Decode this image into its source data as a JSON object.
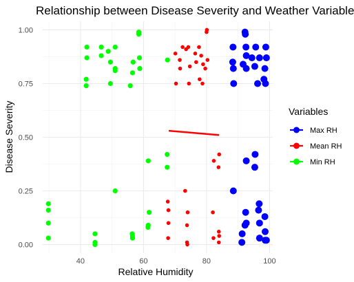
{
  "chart_data": {
    "type": "scatter",
    "title": "Relationship between Disease Severity and Weather Variables",
    "xlabel": "Relative Humidity",
    "ylabel": "Disease Severity",
    "xlim": [
      28,
      101
    ],
    "ylim": [
      -0.04,
      1.04
    ],
    "x_ticks": [
      40,
      60,
      80,
      100
    ],
    "y_ticks": [
      0.0,
      0.25,
      0.5,
      0.75,
      1.0
    ],
    "x_tick_labels": [
      "40",
      "60",
      "80",
      "100"
    ],
    "y_tick_labels": [
      "0.00",
      "0.25",
      "0.50",
      "0.75",
      "1.00"
    ],
    "grid": true,
    "legend": {
      "title": "Variables",
      "position": "right"
    },
    "series": [
      {
        "name": "Max RH",
        "color": "#0000ff",
        "points": [
          [
            92.2,
            0.99
          ],
          [
            92.3,
            0.98
          ],
          [
            88.4,
            0.92
          ],
          [
            92.5,
            0.92
          ],
          [
            95.6,
            0.92
          ],
          [
            98.8,
            0.92
          ],
          [
            92.6,
            0.88
          ],
          [
            94.4,
            0.87
          ],
          [
            96.8,
            0.87
          ],
          [
            99.0,
            0.87
          ],
          [
            88.3,
            0.85
          ],
          [
            91.6,
            0.84
          ],
          [
            88.5,
            0.82
          ],
          [
            92.6,
            0.82
          ],
          [
            95.3,
            0.83
          ],
          [
            98.5,
            0.82
          ],
          [
            96.2,
            0.75
          ],
          [
            98.7,
            0.75
          ],
          [
            98.2,
            0.77
          ],
          [
            88.6,
            0.75
          ],
          [
            95.4,
            0.42
          ],
          [
            92.6,
            0.39
          ],
          [
            95.3,
            0.36
          ],
          [
            88.5,
            0.25
          ],
          [
            96.7,
            0.19
          ],
          [
            96.5,
            0.16
          ],
          [
            92.4,
            0.15
          ],
          [
            98.5,
            0.13
          ],
          [
            92.6,
            0.1
          ],
          [
            96.8,
            0.1
          ],
          [
            92.2,
            0.09
          ],
          [
            91.3,
            0.05
          ],
          [
            98.6,
            0.06
          ],
          [
            96.8,
            0.03
          ],
          [
            98.6,
            0.02
          ],
          [
            99.0,
            0.02
          ],
          [
            91.2,
            0.01
          ]
        ]
      },
      {
        "name": "Mean RH",
        "color": "#ff0000",
        "points": [
          [
            80.1,
            1.0
          ],
          [
            80.0,
            0.99
          ],
          [
            72.4,
            0.92
          ],
          [
            74.2,
            0.92
          ],
          [
            77.6,
            0.92
          ],
          [
            73.5,
            0.91
          ],
          [
            70.1,
            0.89
          ],
          [
            76.4,
            0.89
          ],
          [
            78.3,
            0.88
          ],
          [
            71.5,
            0.86
          ],
          [
            76.7,
            0.85
          ],
          [
            80.3,
            0.86
          ],
          [
            78.9,
            0.84
          ],
          [
            71.6,
            0.82
          ],
          [
            74.7,
            0.83
          ],
          [
            79.6,
            0.82
          ],
          [
            77.8,
            0.77
          ],
          [
            70.3,
            0.75
          ],
          [
            74.4,
            0.75
          ],
          [
            78.7,
            0.75
          ],
          [
            84.0,
            0.42
          ],
          [
            82.3,
            0.39
          ],
          [
            83.8,
            0.36
          ],
          [
            73.2,
            0.25
          ],
          [
            67.7,
            0.2
          ],
          [
            67.9,
            0.16
          ],
          [
            74.0,
            0.15
          ],
          [
            82.0,
            0.15
          ],
          [
            67.9,
            0.1
          ],
          [
            73.8,
            0.09
          ],
          [
            83.9,
            0.06
          ],
          [
            84.0,
            0.04
          ],
          [
            82.2,
            0.03
          ],
          [
            67.8,
            0.03
          ],
          [
            73.8,
            0.01
          ],
          [
            83.9,
            0.01
          ],
          [
            73.9,
            0.0
          ]
        ]
      },
      {
        "name": "Min RH",
        "color": "#00ff00",
        "points": [
          [
            58.5,
            0.99
          ],
          [
            58.5,
            0.98
          ],
          [
            42.0,
            0.92
          ],
          [
            46.6,
            0.92
          ],
          [
            51.0,
            0.92
          ],
          [
            48.8,
            0.9
          ],
          [
            46.6,
            0.88
          ],
          [
            42.0,
            0.87
          ],
          [
            58.7,
            0.87
          ],
          [
            67.6,
            0.86
          ],
          [
            49.5,
            0.85
          ],
          [
            56.7,
            0.85
          ],
          [
            58.8,
            0.82
          ],
          [
            51.0,
            0.82
          ],
          [
            51.0,
            0.81
          ],
          [
            56.5,
            0.8
          ],
          [
            41.8,
            0.77
          ],
          [
            41.8,
            0.74
          ],
          [
            49.5,
            0.75
          ],
          [
            55.8,
            0.74
          ],
          [
            67.5,
            0.42
          ],
          [
            61.5,
            0.39
          ],
          [
            67.5,
            0.36
          ],
          [
            51.0,
            0.25
          ],
          [
            29.8,
            0.19
          ],
          [
            29.8,
            0.16
          ],
          [
            61.8,
            0.15
          ],
          [
            61.5,
            0.09
          ],
          [
            29.8,
            0.1
          ],
          [
            61.4,
            0.08
          ],
          [
            44.6,
            0.05
          ],
          [
            56.4,
            0.05
          ],
          [
            56.5,
            0.04
          ],
          [
            56.5,
            0.03
          ],
          [
            29.8,
            0.03
          ],
          [
            44.6,
            0.01
          ],
          [
            44.6,
            0.0
          ]
        ]
      }
    ],
    "trend_line": {
      "color": "#ff0000",
      "points": [
        [
          68.0,
          0.53
        ],
        [
          84.0,
          0.51
        ]
      ]
    }
  }
}
